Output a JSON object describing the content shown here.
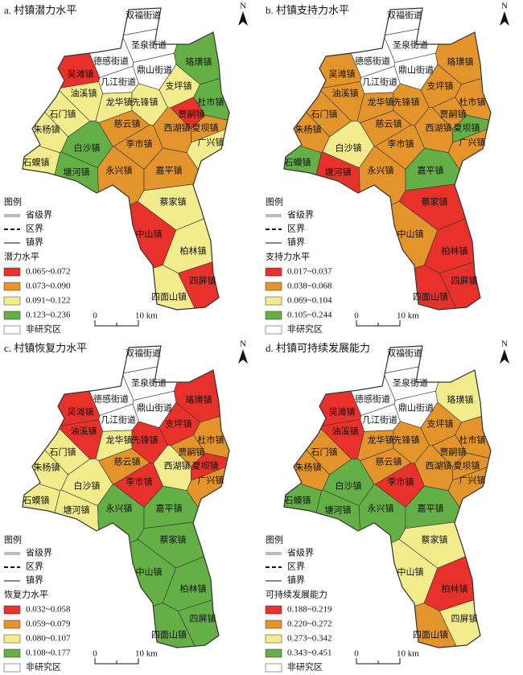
{
  "towns": [
    "双福街道",
    "圣泉街道",
    "德感街道",
    "鼎山街道",
    "几江街道",
    "吴滩镇",
    "油溪镇",
    "石门镇",
    "朱杨镇",
    "白沙镇",
    "石蟆镇",
    "塘河镇",
    "龙华镇",
    "先锋镇",
    "慈云镇",
    "李市镇",
    "永兴镇",
    "嘉平镇",
    "西湖镇",
    "贾嗣镇",
    "杜市镇",
    "夏坝镇",
    "广兴镇",
    "支坪镇",
    "珞璜镇",
    "蔡家镇",
    "中山镇",
    "柏林镇",
    "四屏镇",
    "四面山镇"
  ],
  "legend": {
    "heading": "图例",
    "province": "省级界",
    "district": "区界",
    "town": "镇界",
    "non_study": "非研究区",
    "scale_zero": "0",
    "scale": "10 km",
    "north": "N"
  },
  "panels": [
    {
      "title": "a. 村镇潜力水平",
      "legend_title": "潜力水平",
      "classes": [
        {
          "label": "0.065~0.072",
          "color": "#e8312a"
        },
        {
          "label": "0.073~0.090",
          "color": "#e3952b"
        },
        {
          "label": "0.091~0.122",
          "color": "#f2ec8c"
        },
        {
          "label": "0.123~0.236",
          "color": "#65b046"
        }
      ],
      "town_colors": [
        "#ffffff",
        "#ffffff",
        "#ffffff",
        "#ffffff",
        "#ffffff",
        "#e8312a",
        "#f2ec8c",
        "#f2ec8c",
        "#f2ec8c",
        "#65b046",
        "#f2ec8c",
        "#65b046",
        "#f2ec8c",
        "#f2ec8c",
        "#e3952b",
        "#e3952b",
        "#e3952b",
        "#e3952b",
        "#e3952b",
        "#e8312a",
        "#65b046",
        "#e3952b",
        "#f2ec8c",
        "#f2ec8c",
        "#65b046",
        "#f2ec8c",
        "#e8312a",
        "#f2ec8c",
        "#e8312a",
        "#f2ec8c"
      ]
    },
    {
      "title": "b. 村镇支持力水平",
      "legend_title": "支持力水平",
      "classes": [
        {
          "label": "0.017~0.037",
          "color": "#e8312a"
        },
        {
          "label": "0.038~0.068",
          "color": "#e3952b"
        },
        {
          "label": "0.069~0.104",
          "color": "#f2ec8c"
        },
        {
          "label": "0.105~0.244",
          "color": "#65b046"
        }
      ],
      "town_colors": [
        "#ffffff",
        "#ffffff",
        "#ffffff",
        "#ffffff",
        "#ffffff",
        "#e3952b",
        "#e3952b",
        "#e3952b",
        "#e3952b",
        "#f2ec8c",
        "#65b046",
        "#e8312a",
        "#e3952b",
        "#e3952b",
        "#e3952b",
        "#e3952b",
        "#e3952b",
        "#65b046",
        "#e3952b",
        "#e3952b",
        "#e3952b",
        "#65b046",
        "#e3952b",
        "#e3952b",
        "#e3952b",
        "#e8312a",
        "#e3952b",
        "#e8312a",
        "#e8312a",
        "#e8312a"
      ]
    },
    {
      "title": "c. 村镇恢复力水平",
      "legend_title": "恢复力水平",
      "classes": [
        {
          "label": "0.032~0.058",
          "color": "#e8312a"
        },
        {
          "label": "0.059~0.079",
          "color": "#e3952b"
        },
        {
          "label": "0.080~0.107",
          "color": "#f2ec8c"
        },
        {
          "label": "0.108~0.177",
          "color": "#65b046"
        }
      ],
      "town_colors": [
        "#ffffff",
        "#ffffff",
        "#ffffff",
        "#ffffff",
        "#ffffff",
        "#e8312a",
        "#e8312a",
        "#f2ec8c",
        "#f2ec8c",
        "#f2ec8c",
        "#f2ec8c",
        "#f2ec8c",
        "#f2ec8c",
        "#e8312a",
        "#e3952b",
        "#e8312a",
        "#65b046",
        "#65b046",
        "#f2ec8c",
        "#e3952b",
        "#e3952b",
        "#e8312a",
        "#e3952b",
        "#e8312a",
        "#e8312a",
        "#65b046",
        "#65b046",
        "#65b046",
        "#65b046",
        "#65b046"
      ]
    },
    {
      "title": "d. 村镇可持续发展能力",
      "legend_title": "可持续发展能力",
      "classes": [
        {
          "label": "0.188~0.219",
          "color": "#e8312a"
        },
        {
          "label": "0.220~0.272",
          "color": "#e3952b"
        },
        {
          "label": "0.273~0.342",
          "color": "#f2ec8c"
        },
        {
          "label": "0.343~0.451",
          "color": "#65b046"
        }
      ],
      "town_colors": [
        "#ffffff",
        "#ffffff",
        "#ffffff",
        "#ffffff",
        "#ffffff",
        "#e8312a",
        "#e8312a",
        "#e3952b",
        "#e3952b",
        "#65b046",
        "#65b046",
        "#65b046",
        "#e3952b",
        "#e3952b",
        "#e3952b",
        "#e8312a",
        "#65b046",
        "#65b046",
        "#e3952b",
        "#e3952b",
        "#e3952b",
        "#e3952b",
        "#e3952b",
        "#e3952b",
        "#f2ec8c",
        "#f2ec8c",
        "#f2ec8c",
        "#e8312a",
        "#f2ec8c",
        "#e3952b"
      ]
    }
  ]
}
